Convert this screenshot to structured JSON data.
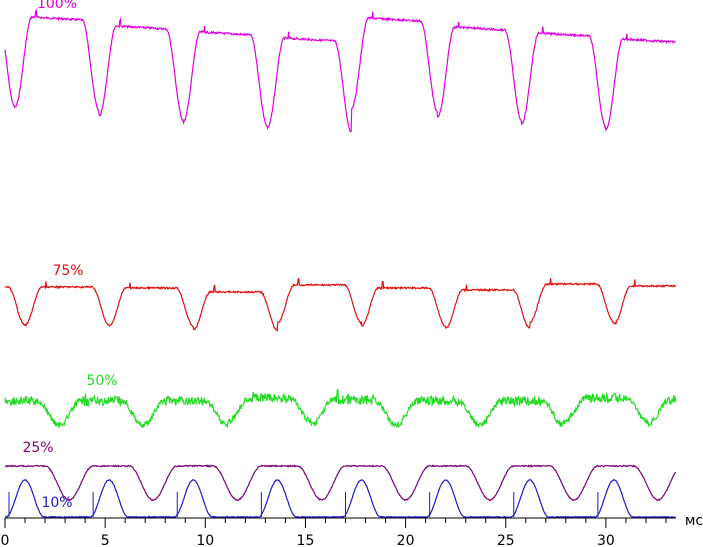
{
  "chart_data": {
    "type": "line",
    "xlabel": "мс",
    "xlim": [
      0,
      33.5
    ],
    "x_ticks": [
      0,
      5,
      10,
      15,
      20,
      25,
      30
    ],
    "x_tick_labels": [
      "0",
      "5",
      "10",
      "15",
      "20",
      "25",
      "30"
    ],
    "grid": false,
    "legend": "none",
    "period_ms": 4.17,
    "series": [
      {
        "name": "100%",
        "color": "#e000e0",
        "note_shape": "high plateau with sharp dips",
        "dip_centers_ms": [
          0.5,
          4.7,
          8.9,
          13.1,
          17.3,
          21.6,
          25.8,
          30.0
        ],
        "plateau_levels": [
          17,
          26,
          32,
          38,
          18,
          27,
          33,
          39
        ]
      },
      {
        "name": "75%",
        "color": "#e01010",
        "note_shape": "plateau with dips",
        "dip_centers_ms": [
          1.0,
          5.2,
          9.4,
          13.6,
          17.8,
          22.0,
          26.2,
          30.4
        ],
        "plateau_levels": [
          287,
          288,
          292,
          285,
          288,
          290,
          284,
          286
        ]
      },
      {
        "name": "50%",
        "color": "#22dd22",
        "note_shape": "noisy plateau with shallow dips",
        "dip_centers_ms": [
          2.7,
          6.9,
          11.1,
          15.3,
          19.5,
          23.7,
          27.9,
          32.1
        ],
        "plateau_levels": [
          401,
          401,
          398,
          400,
          401,
          401,
          398,
          400
        ]
      },
      {
        "name": "25%",
        "color": "#7a007a",
        "note_shape": "plateau with wide dips",
        "dip_centers_ms": [
          3.2,
          7.4,
          11.6,
          15.8,
          20.0,
          24.2,
          28.4,
          32.6
        ],
        "plateau_levels": [
          466,
          466,
          466,
          466,
          466,
          466,
          466,
          466
        ]
      },
      {
        "name": "10%",
        "color": "#1a1ad0",
        "note_shape": "baseline with narrow peaks",
        "peak_centers_ms": [
          1.0,
          5.2,
          9.4,
          13.6,
          17.8,
          22.0,
          26.2,
          30.4
        ],
        "baseline": 517
      }
    ]
  }
}
